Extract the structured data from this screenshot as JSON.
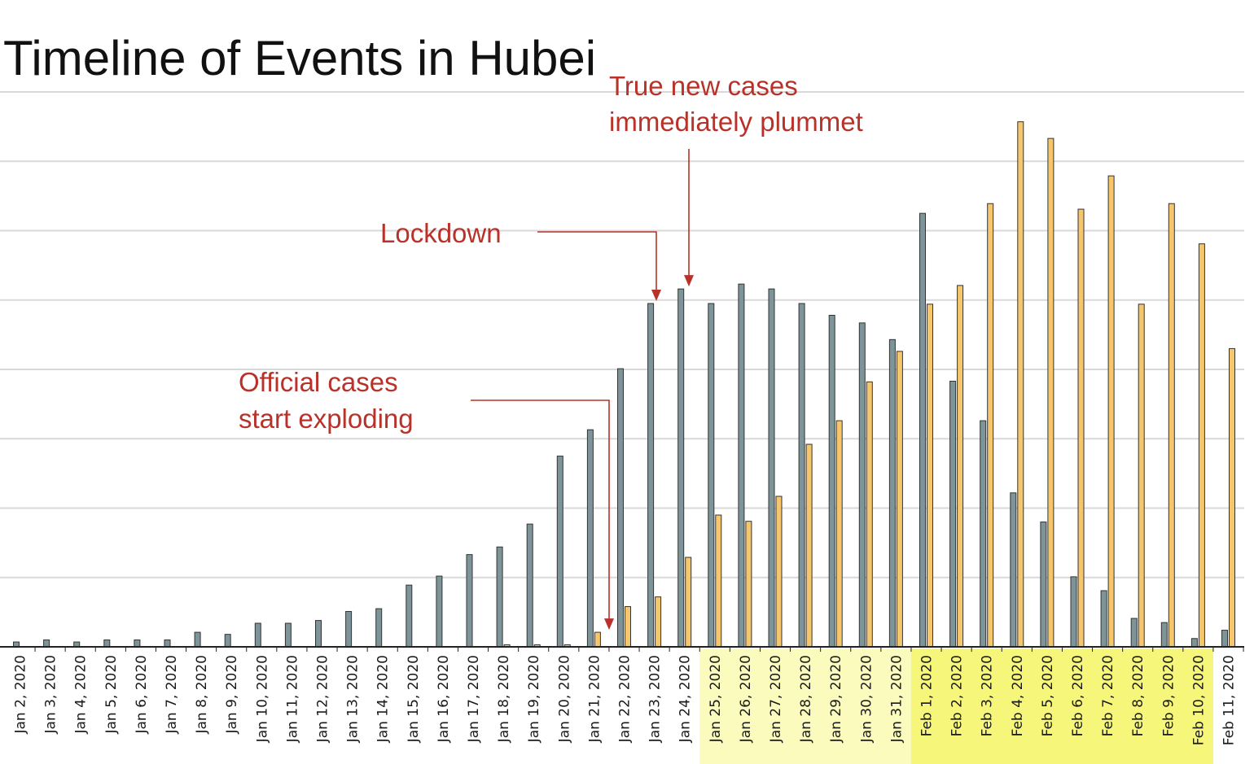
{
  "chart_data": {
    "type": "bar",
    "title": "Timeline of Events in Hubei",
    "xlabel": "",
    "ylabel": "",
    "ylim": [
      0,
      800
    ],
    "grid": true,
    "categories": [
      "Jan 2, 2020",
      "Jan 3, 2020",
      "Jan 4, 2020",
      "Jan 5, 2020",
      "Jan 6, 2020",
      "Jan 7, 2020",
      "Jan 8, 2020",
      "Jan 9, 2020",
      "Jan 10, 2020",
      "Jan 11, 2020",
      "Jan 12, 2020",
      "Jan 13, 2020",
      "Jan 14, 2020",
      "Jan 15, 2020",
      "Jan 16, 2020",
      "Jan 17, 2020",
      "Jan 18, 2020",
      "Jan 19, 2020",
      "Jan 20, 2020",
      "Jan 21, 2020",
      "Jan 22, 2020",
      "Jan 23, 2020",
      "Jan 24, 2020",
      "Jan 25, 2020",
      "Jan 26, 2020",
      "Jan 27, 2020",
      "Jan 28, 2020",
      "Jan 29, 2020",
      "Jan 30, 2020",
      "Jan 31, 2020",
      "Feb 1, 2020",
      "Feb 2, 2020",
      "Feb 3, 2020",
      "Feb 4, 2020",
      "Feb 5, 2020",
      "Feb 6, 2020",
      "Feb 7, 2020",
      "Feb 8, 2020",
      "Feb 9, 2020",
      "Feb 10, 2020",
      "Feb 11, 2020"
    ],
    "series": [
      {
        "color": "#7d9599",
        "values": [
          7,
          10,
          7,
          10,
          10,
          10,
          21,
          18,
          34,
          34,
          38,
          51,
          55,
          89,
          102,
          133,
          144,
          177,
          275,
          313,
          401,
          495,
          516,
          495,
          523,
          516,
          495,
          478,
          467,
          443,
          625,
          383,
          326,
          222,
          180,
          101,
          81,
          41,
          35,
          12,
          24
        ]
      },
      {
        "color": "#f6c66d",
        "values": [
          0,
          0,
          0,
          0,
          0,
          0,
          0,
          0,
          0,
          0,
          0,
          0,
          0,
          0,
          0,
          0,
          3,
          3,
          3,
          21,
          58,
          72,
          129,
          190,
          181,
          217,
          292,
          326,
          382,
          426,
          494,
          521,
          639,
          757,
          733,
          631,
          679,
          494,
          639,
          581,
          430
        ]
      }
    ],
    "highlights": [
      {
        "from": "Jan 25, 2020",
        "to": "Jan 31, 2020",
        "color": "#fbfbbd"
      },
      {
        "from": "Feb 1, 2020",
        "to": "Feb 10, 2020",
        "color": "#f6f67a"
      }
    ],
    "annotations": [
      {
        "lines": [
          "Official cases",
          "start exploding"
        ],
        "target": "Jan 21, 2020"
      },
      {
        "lines": [
          "Lockdown"
        ],
        "target": "Jan 23, 2020"
      },
      {
        "lines": [
          "True new cases",
          "immediately plummet"
        ],
        "target": "Jan 24, 2020"
      }
    ],
    "annotation_color": "#b8322a"
  }
}
